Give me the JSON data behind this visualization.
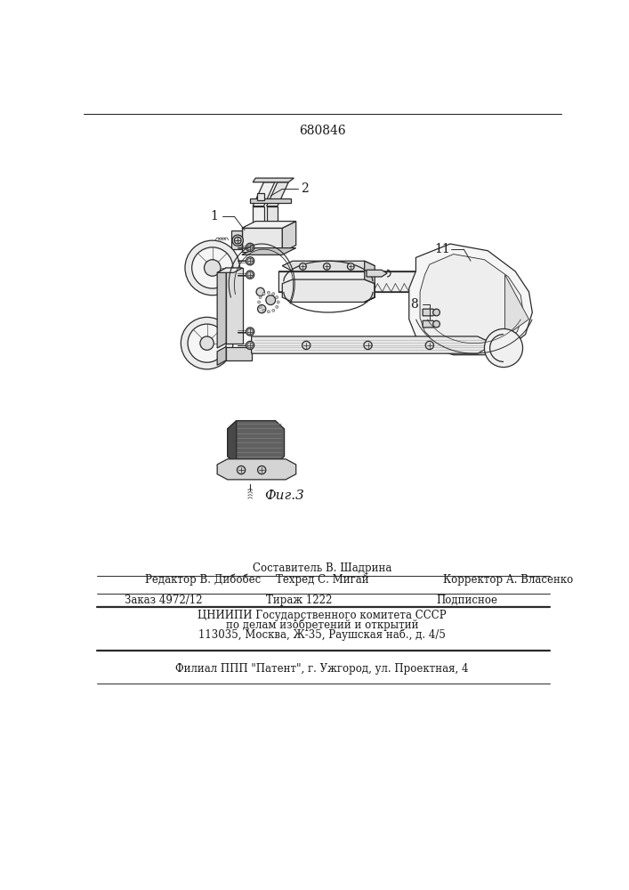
{
  "patent_number": "680846",
  "fig_label": "Фиг.3",
  "bg_color": "#ffffff",
  "line_color": "#2a2a2a",
  "text_color": "#1a1a1a",
  "footer_line0": "Составитель В. Шадрина",
  "footer_line1a": "Редактор В. Дибобес",
  "footer_line1b": "Техред С. Мигай",
  "footer_line1c": "Корректор А. Власенко",
  "footer_line2a": "Заказ 4972/12",
  "footer_line2b": "Тираж 1222",
  "footer_line2c": "Подписное",
  "footer_line3": "ЦНИИПИ Государственного комитета СССР",
  "footer_line4": "по делам изобретений и открытий",
  "footer_line5": "113035, Москва, Ж-35, Раушская наб., д. 4/5",
  "footer_line6": "Филиал ППП \"Патент\", г. Ужгород, ул. Проектная, 4",
  "label_1": "1",
  "label_2": "2",
  "label_8": "8",
  "label_11": "11",
  "figsize": [
    7.07,
    10.0
  ],
  "dpi": 100
}
